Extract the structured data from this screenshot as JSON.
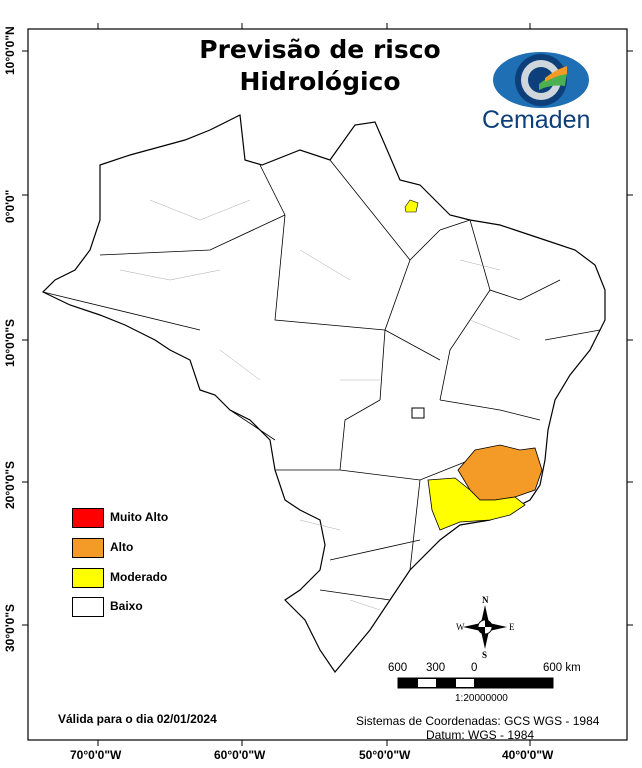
{
  "title_line1": "Previsão de risco",
  "title_line2": "Hidrológico",
  "logo_text": "Cemaden",
  "lat_labels": [
    "10°0'0\"N",
    "0°0'0\"",
    "10°0'0\"S",
    "20°0'0\"S",
    "30°0'0\"S"
  ],
  "lon_labels": [
    "70°0'0\"W",
    "60°0'0\"W",
    "50°0'0\"W",
    "40°0'0\"W"
  ],
  "legend": [
    {
      "label": "Muito Alto",
      "color": "#ff0000"
    },
    {
      "label": "Alto",
      "color": "#f39a27"
    },
    {
      "label": "Moderado",
      "color": "#ffff00"
    },
    {
      "label": "Baixo",
      "color": "#ffffff"
    }
  ],
  "compass": {
    "n": "N",
    "s": "S",
    "e": "E",
    "w": "W"
  },
  "scale": {
    "ticks": [
      "600",
      "300",
      "0",
      "600 km"
    ],
    "ratio": "1:20000000"
  },
  "validity": "Válida para o dia 02/01/2024",
  "crs": "Sistemas de Coordenadas: GCS WGS - 1984",
  "datum": "Datum: WGS - 1984"
}
